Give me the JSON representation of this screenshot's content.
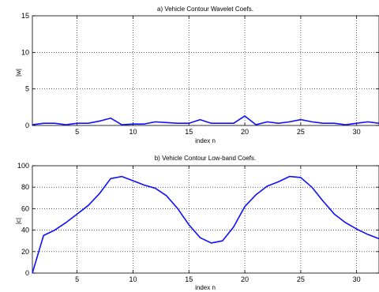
{
  "chart_data": [
    {
      "type": "line",
      "title": "a) Vehicle Contour Wavelet Coefs.",
      "xlabel": "",
      "ylabel": "|w|",
      "xlim": [
        1,
        32
      ],
      "ylim": [
        0,
        15
      ],
      "xticks": [
        5,
        10,
        15,
        20,
        25,
        30
      ],
      "yticks": [
        0,
        5,
        10,
        15
      ],
      "grid": true,
      "series": [
        {
          "color": "#1010ff",
          "x": [
            1,
            2,
            3,
            4,
            5,
            6,
            7,
            8,
            9,
            10,
            11,
            12,
            13,
            14,
            15,
            16,
            17,
            18,
            19,
            20,
            21,
            22,
            23,
            24,
            25,
            26,
            27,
            28,
            29,
            30,
            31,
            32
          ],
          "y": [
            0.1,
            0.3,
            0.3,
            0.1,
            0.3,
            0.3,
            0.6,
            1.0,
            0.1,
            0.2,
            0.2,
            0.5,
            0.4,
            0.3,
            0.3,
            0.8,
            0.3,
            0.3,
            0.3,
            1.3,
            0.1,
            0.5,
            0.3,
            0.5,
            0.8,
            0.5,
            0.3,
            0.3,
            0.1,
            0.3,
            0.5,
            0.3
          ]
        }
      ]
    },
    {
      "type": "line",
      "title": "b) Vehicle Contour Low-band Coefs.",
      "xlabel": "index n",
      "ylabel": "|c|",
      "xlim": [
        1,
        32
      ],
      "ylim": [
        0,
        100
      ],
      "xticks": [
        5,
        10,
        15,
        20,
        25,
        30
      ],
      "yticks": [
        0,
        20,
        40,
        60,
        80,
        100
      ],
      "grid": true,
      "series": [
        {
          "color": "#1010ff",
          "x": [
            1,
            2,
            3,
            4,
            5,
            6,
            7,
            8,
            9,
            10,
            11,
            12,
            13,
            14,
            15,
            16,
            17,
            18,
            19,
            20,
            21,
            22,
            23,
            24,
            25,
            26,
            27,
            28,
            29,
            30,
            31,
            32
          ],
          "y": [
            0,
            35,
            40,
            47,
            55,
            63,
            74,
            88,
            90,
            86,
            82,
            79,
            72,
            60,
            45,
            33,
            28,
            30,
            43,
            62,
            73,
            81,
            85,
            90,
            89,
            80,
            67,
            55,
            47,
            41,
            36,
            32
          ]
        }
      ]
    }
  ],
  "top_xlabel": "index n"
}
